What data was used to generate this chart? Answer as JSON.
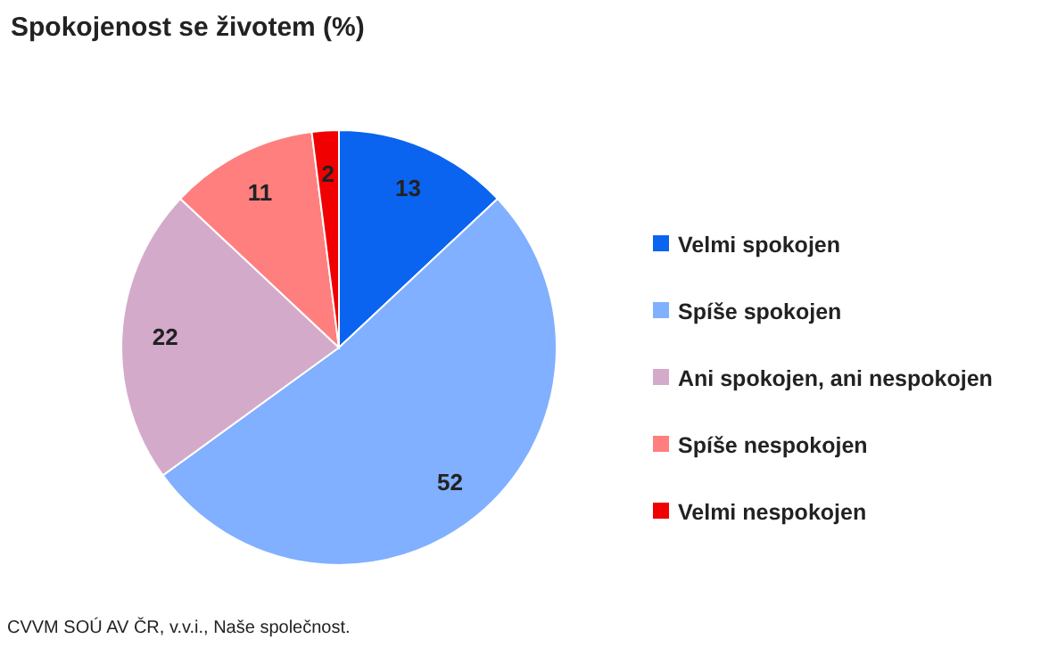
{
  "chart_data": {
    "type": "pie",
    "title": "Spokojenost se životem (%)",
    "categories": [
      "Velmi spokojen",
      "Spíše spokojen",
      "Ani spokojen, ani nespokojen",
      "Spíše nespokojen",
      "Velmi nespokojen"
    ],
    "values": [
      13,
      52,
      22,
      11,
      2
    ],
    "colors": [
      "#0a64f0",
      "#80b0ff",
      "#d4aacb",
      "#ff7f7f",
      "#f00000"
    ],
    "data_labels": true,
    "legend": "right",
    "annotations": [
      "CVVM SOÚ AV ČR, v.v.i., Naše společnost."
    ]
  }
}
